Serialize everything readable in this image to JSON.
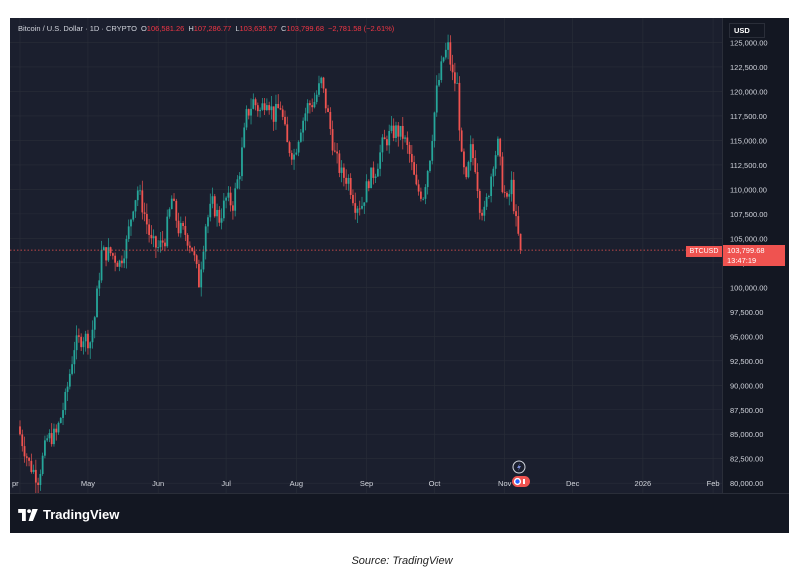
{
  "legend": {
    "symbol": "Bitcoin / U.S. Dollar",
    "interval": "1D",
    "exchange": "CRYPTO",
    "open_label": "O",
    "open": "106,581.26",
    "high_label": "H",
    "high": "107,286.77",
    "low_label": "L",
    "low": "103,635.57",
    "close_label": "C",
    "close": "103,799.68",
    "change": "−2,781.58 (−2.61%)"
  },
  "currency_badge": "USD",
  "price_tag": {
    "symbol": "BTCUSD",
    "price": "103,799.68",
    "countdown": "13:47:19"
  },
  "brand": "TradingView",
  "source_caption": "Source: TradingView",
  "colors": {
    "up": "#26a69a",
    "down": "#ef5350",
    "background": "#1b1f2e",
    "text": "#d1d4dc"
  },
  "chart_data": {
    "type": "candlestick",
    "y_ticks": [
      {
        "value": 80000,
        "label": "80,000.00"
      },
      {
        "value": 82500,
        "label": "82,500.00"
      },
      {
        "value": 85000,
        "label": "85,000.00"
      },
      {
        "value": 87500,
        "label": "87,500.00"
      },
      {
        "value": 90000,
        "label": "90,000.00"
      },
      {
        "value": 92500,
        "label": "92,500.00"
      },
      {
        "value": 95000,
        "label": "95,000.00"
      },
      {
        "value": 97500,
        "label": "97,500.00"
      },
      {
        "value": 100000,
        "label": "100,000.00"
      },
      {
        "value": 102500,
        "label": "102,500.00"
      },
      {
        "value": 105000,
        "label": "105,000.00"
      },
      {
        "value": 107500,
        "label": "107,500.00"
      },
      {
        "value": 110000,
        "label": "110,000.00"
      },
      {
        "value": 112500,
        "label": "112,500.00"
      },
      {
        "value": 115000,
        "label": "115,000.00"
      },
      {
        "value": 117500,
        "label": "117,500.00"
      },
      {
        "value": 120000,
        "label": "120,000.00"
      },
      {
        "value": 122500,
        "label": "122,500.00"
      },
      {
        "value": 125000,
        "label": "125,000.00"
      }
    ],
    "ylim": [
      79000,
      127500
    ],
    "x_ticks": [
      "pr",
      "May",
      "Jun",
      "Jul",
      "Aug",
      "Sep",
      "Oct",
      "Nov",
      "Dec",
      "2026",
      "Feb"
    ],
    "x_tick_days": [
      0,
      30,
      61,
      91,
      122,
      153,
      183,
      214,
      244,
      275,
      306
    ],
    "last_close": 103799.68,
    "closes": [
      {
        "day": 0,
        "close": 85000
      },
      {
        "day": 4,
        "close": 82000
      },
      {
        "day": 8,
        "close": 80500
      },
      {
        "day": 12,
        "close": 84500
      },
      {
        "day": 16,
        "close": 85000
      },
      {
        "day": 20,
        "close": 88500
      },
      {
        "day": 24,
        "close": 94000
      },
      {
        "day": 28,
        "close": 95000
      },
      {
        "day": 31,
        "close": 94500
      },
      {
        "day": 33,
        "close": 97000
      },
      {
        "day": 36,
        "close": 103500
      },
      {
        "day": 40,
        "close": 103500
      },
      {
        "day": 44,
        "close": 102500
      },
      {
        "day": 47,
        "close": 104500
      },
      {
        "day": 50,
        "close": 108500
      },
      {
        "day": 52,
        "close": 110000
      },
      {
        "day": 55,
        "close": 107500
      },
      {
        "day": 58,
        "close": 104500
      },
      {
        "day": 61,
        "close": 104000
      },
      {
        "day": 64,
        "close": 105000
      },
      {
        "day": 67,
        "close": 109000
      },
      {
        "day": 70,
        "close": 106000
      },
      {
        "day": 73,
        "close": 105500
      },
      {
        "day": 76,
        "close": 104000
      },
      {
        "day": 79,
        "close": 100500
      },
      {
        "day": 82,
        "close": 106500
      },
      {
        "day": 85,
        "close": 108500
      },
      {
        "day": 88,
        "close": 107000
      },
      {
        "day": 91,
        "close": 109000
      },
      {
        "day": 94,
        "close": 108500
      },
      {
        "day": 97,
        "close": 112000
      },
      {
        "day": 100,
        "close": 117500
      },
      {
        "day": 103,
        "close": 119000
      },
      {
        "day": 106,
        "close": 118000
      },
      {
        "day": 109,
        "close": 119500
      },
      {
        "day": 112,
        "close": 117500
      },
      {
        "day": 115,
        "close": 118500
      },
      {
        "day": 118,
        "close": 114500
      },
      {
        "day": 121,
        "close": 113500
      },
      {
        "day": 124,
        "close": 116500
      },
      {
        "day": 127,
        "close": 118500
      },
      {
        "day": 130,
        "close": 119000
      },
      {
        "day": 133,
        "close": 121000
      },
      {
        "day": 136,
        "close": 117500
      },
      {
        "day": 139,
        "close": 113500
      },
      {
        "day": 142,
        "close": 111500
      },
      {
        "day": 145,
        "close": 111000
      },
      {
        "day": 148,
        "close": 108500
      },
      {
        "day": 151,
        "close": 108500
      },
      {
        "day": 154,
        "close": 111000
      },
      {
        "day": 157,
        "close": 112000
      },
      {
        "day": 160,
        "close": 114500
      },
      {
        "day": 163,
        "close": 115500
      },
      {
        "day": 166,
        "close": 116000
      },
      {
        "day": 169,
        "close": 115500
      },
      {
        "day": 172,
        "close": 113500
      },
      {
        "day": 175,
        "close": 110000
      },
      {
        "day": 178,
        "close": 109500
      },
      {
        "day": 181,
        "close": 113500
      },
      {
        "day": 184,
        "close": 120000
      },
      {
        "day": 187,
        "close": 123500
      },
      {
        "day": 189,
        "close": 124500
      },
      {
        "day": 191,
        "close": 121500
      },
      {
        "day": 193,
        "close": 120500
      },
      {
        "day": 195,
        "close": 113000
      },
      {
        "day": 197,
        "close": 110500
      },
      {
        "day": 199,
        "close": 114000
      },
      {
        "day": 201,
        "close": 112500
      },
      {
        "day": 203,
        "close": 108500
      },
      {
        "day": 205,
        "close": 107500
      },
      {
        "day": 207,
        "close": 110000
      },
      {
        "day": 209,
        "close": 113000
      },
      {
        "day": 211,
        "close": 114500
      },
      {
        "day": 213,
        "close": 110500
      },
      {
        "day": 215,
        "close": 108500
      },
      {
        "day": 217,
        "close": 110500
      },
      {
        "day": 219,
        "close": 106500
      },
      {
        "day": 221,
        "close": 103800
      }
    ]
  }
}
